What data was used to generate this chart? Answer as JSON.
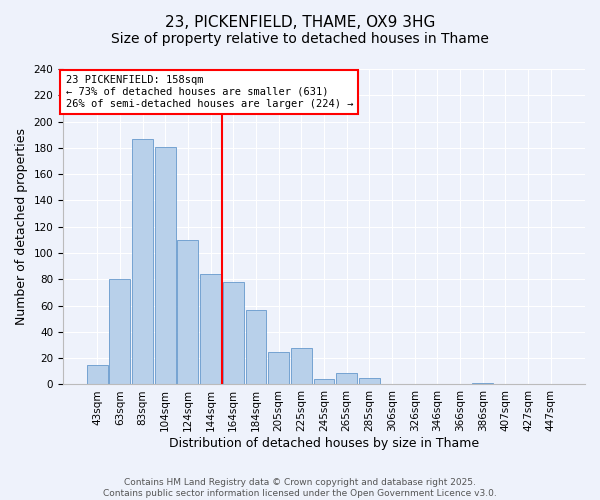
{
  "title": "23, PICKENFIELD, THAME, OX9 3HG",
  "subtitle": "Size of property relative to detached houses in Thame",
  "xlabel": "Distribution of detached houses by size in Thame",
  "ylabel": "Number of detached properties",
  "bar_labels": [
    "43sqm",
    "63sqm",
    "83sqm",
    "104sqm",
    "124sqm",
    "144sqm",
    "164sqm",
    "184sqm",
    "205sqm",
    "225sqm",
    "245sqm",
    "265sqm",
    "285sqm",
    "306sqm",
    "326sqm",
    "346sqm",
    "366sqm",
    "386sqm",
    "407sqm",
    "427sqm",
    "447sqm"
  ],
  "bar_values": [
    15,
    80,
    187,
    181,
    110,
    84,
    78,
    57,
    25,
    28,
    4,
    9,
    5,
    0,
    0,
    0,
    0,
    1,
    0,
    0,
    0
  ],
  "bar_color": "#b8d0ea",
  "bar_edge_color": "#6699cc",
  "vline_index": 6,
  "vline_color": "red",
  "annotation_lines": [
    "23 PICKENFIELD: 158sqm",
    "← 73% of detached houses are smaller (631)",
    "26% of semi-detached houses are larger (224) →"
  ],
  "annotation_box_color": "white",
  "annotation_box_edge_color": "red",
  "ylim": [
    0,
    240
  ],
  "yticks": [
    0,
    20,
    40,
    60,
    80,
    100,
    120,
    140,
    160,
    180,
    200,
    220,
    240
  ],
  "background_color": "#eef2fb",
  "grid_color": "white",
  "footer_lines": [
    "Contains HM Land Registry data © Crown copyright and database right 2025.",
    "Contains public sector information licensed under the Open Government Licence v3.0."
  ],
  "title_fontsize": 11,
  "axis_label_fontsize": 9,
  "tick_fontsize": 7.5,
  "annotation_fontsize": 7.5,
  "footer_fontsize": 6.5
}
